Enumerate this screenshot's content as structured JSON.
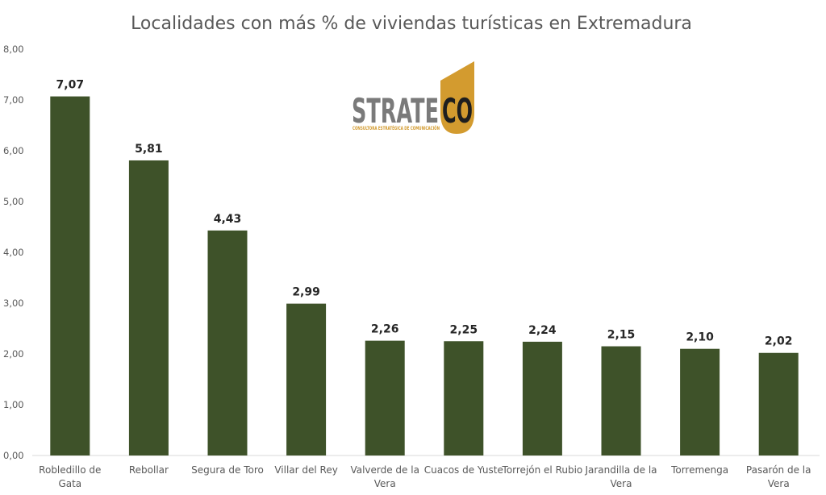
{
  "chart_data": {
    "type": "bar",
    "title": "Localidades con más % de viviendas turísticas en Extremadura",
    "xlabel": "",
    "ylabel": "",
    "ylim": [
      0,
      8
    ],
    "yticks": [
      "0,00",
      "1,00",
      "2,00",
      "3,00",
      "4,00",
      "5,00",
      "6,00",
      "7,00",
      "8,00"
    ],
    "ytick_values": [
      0,
      1,
      2,
      3,
      4,
      5,
      6,
      7,
      8
    ],
    "grid": false,
    "legend": "none",
    "categories": [
      [
        "Robledillo de",
        "Gata"
      ],
      [
        "Rebollar"
      ],
      [
        "Segura de Toro"
      ],
      [
        "Villar del Rey"
      ],
      [
        "Valverde de la",
        "Vera"
      ],
      [
        "Cuacos de Yuste"
      ],
      [
        "Torrejón el Rubio"
      ],
      [
        "Jarandilla de la",
        "Vera"
      ],
      [
        "Torremenga"
      ],
      [
        "Pasarón de la",
        "Vera"
      ]
    ],
    "values": [
      7.07,
      5.81,
      4.43,
      2.99,
      2.26,
      2.25,
      2.24,
      2.15,
      2.1,
      2.02
    ],
    "data_labels": [
      "7,07",
      "5,81",
      "4,43",
      "2,99",
      "2,26",
      "2,25",
      "2,24",
      "2,15",
      "2,10",
      "2,02"
    ],
    "colors": {
      "bar": "#3e5229",
      "axis": "#d9d9d9",
      "text": "#595959",
      "label": "#262626"
    }
  },
  "logo": {
    "word_left": "STRATE",
    "word_right": "CO",
    "tagline": "CONSULTORA ESTRATÉGICA DE COMUNICACIÓN",
    "color_gray": "#7a7a7a",
    "color_gold": "#d39b2f",
    "color_dark": "#1e1e1e"
  }
}
